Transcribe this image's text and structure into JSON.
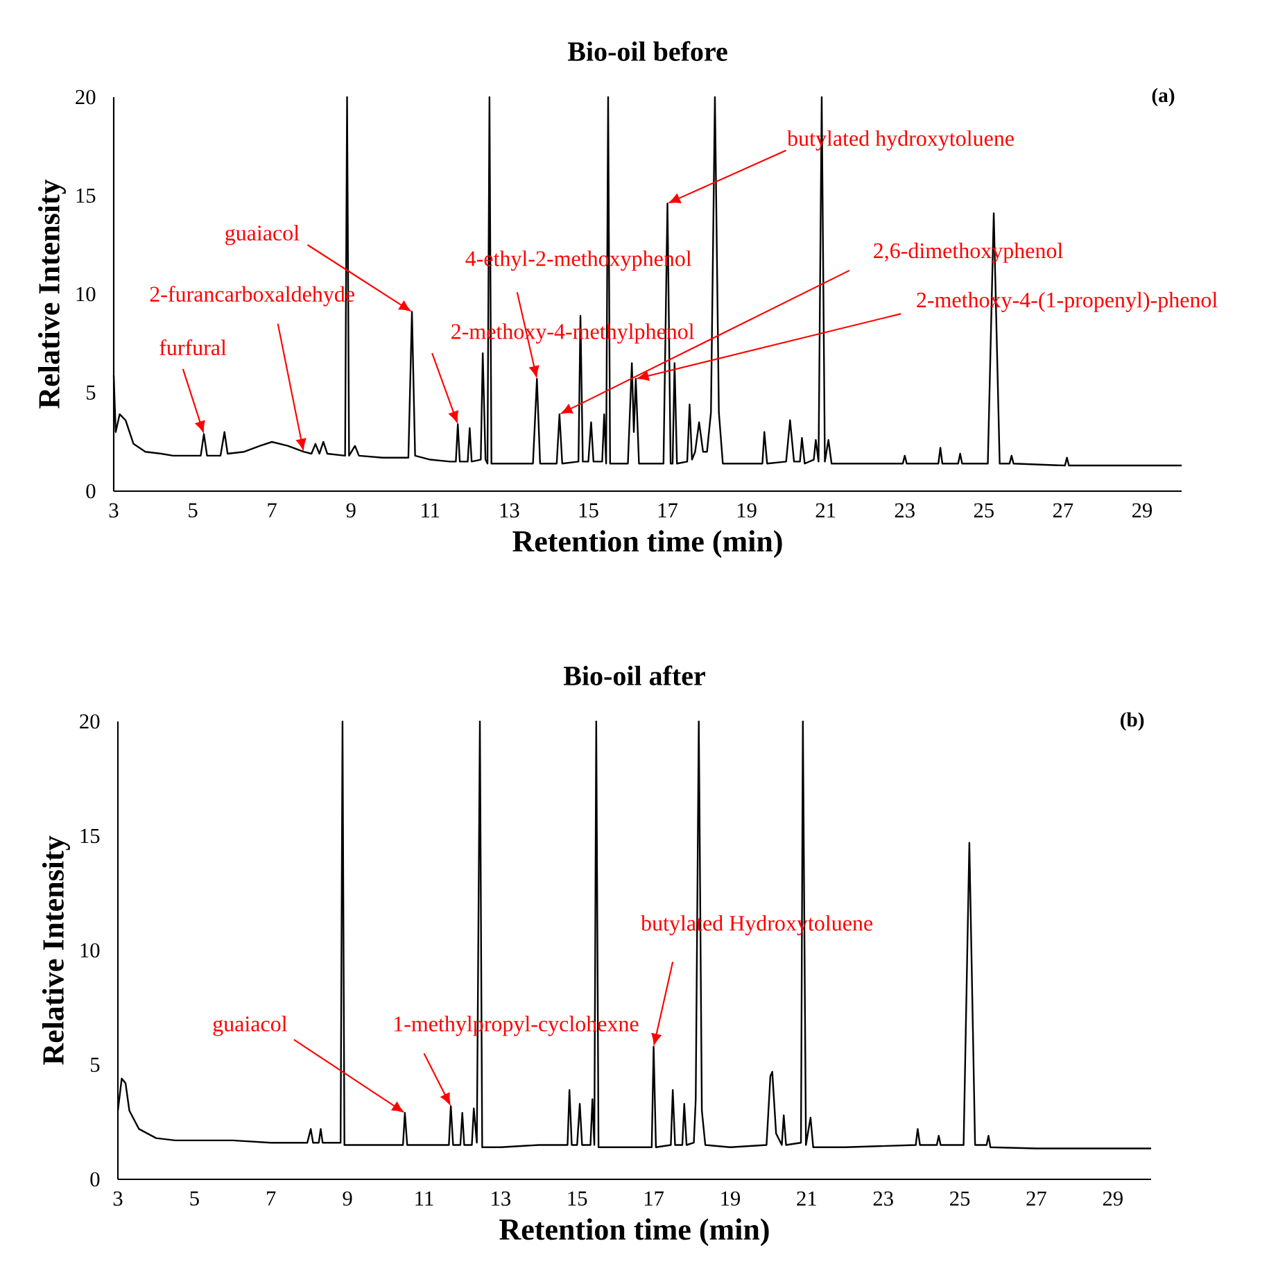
{
  "chart_data": [
    {
      "type": "line",
      "title": "Bio-oil before",
      "xlabel": "Retention time (min)",
      "ylabel": "Relative Intensity",
      "color": "#000000",
      "xlim": [
        3,
        30
      ],
      "xticks": [
        3,
        5,
        7,
        9,
        11,
        13,
        15,
        17,
        19,
        21,
        23,
        25,
        27,
        29
      ],
      "ylim": [
        0,
        20
      ],
      "yticks": [
        0,
        5,
        10,
        15,
        20
      ],
      "x": [
        3.0,
        3.05,
        3.15,
        3.3,
        3.5,
        3.8,
        4.2,
        4.5,
        5.0,
        5.2,
        5.28,
        5.36,
        5.7,
        5.8,
        5.88,
        6.3,
        6.7,
        7.0,
        7.4,
        7.8,
        8.0,
        8.1,
        8.2,
        8.3,
        8.4,
        8.85,
        8.9,
        8.95,
        9.1,
        9.2,
        9.8,
        10.3,
        10.45,
        10.54,
        10.62,
        11.0,
        11.5,
        11.65,
        11.7,
        11.75,
        11.95,
        12.0,
        12.05,
        12.28,
        12.33,
        12.4,
        12.45,
        12.5,
        12.55,
        13.0,
        13.6,
        13.7,
        13.78,
        14.2,
        14.27,
        14.34,
        14.75,
        14.8,
        14.86,
        15.0,
        15.07,
        15.13,
        15.35,
        15.4,
        15.45,
        15.5,
        15.55,
        16.0,
        16.1,
        16.15,
        16.2,
        16.28,
        16.9,
        17.0,
        17.08,
        17.13,
        17.18,
        17.24,
        17.5,
        17.56,
        17.62,
        17.7,
        17.8,
        17.9,
        18.0,
        18.1,
        18.2,
        18.3,
        18.4,
        19.0,
        19.4,
        19.45,
        19.52,
        20.0,
        20.1,
        20.2,
        20.35,
        20.4,
        20.47,
        20.7,
        20.75,
        20.82,
        20.9,
        20.98,
        21.07,
        21.15,
        22.0,
        22.95,
        23.0,
        23.05,
        23.85,
        23.9,
        23.95,
        24.35,
        24.4,
        24.45,
        25.1,
        25.25,
        25.4,
        25.65,
        25.7,
        25.75,
        27.05,
        27.1,
        27.15,
        28.5,
        30.0
      ],
      "values": [
        5.9,
        3.0,
        3.9,
        3.6,
        2.4,
        2.0,
        1.9,
        1.8,
        1.8,
        1.8,
        2.9,
        1.8,
        1.8,
        3.0,
        1.9,
        2.0,
        2.3,
        2.5,
        2.3,
        2.0,
        1.9,
        2.4,
        1.9,
        2.5,
        1.9,
        1.8,
        20,
        1.8,
        2.3,
        1.8,
        1.7,
        1.7,
        1.7,
        9.1,
        1.8,
        1.6,
        1.5,
        1.5,
        3.4,
        1.5,
        1.5,
        3.2,
        1.5,
        1.6,
        7.0,
        1.6,
        1.4,
        20,
        1.4,
        1.4,
        1.4,
        5.7,
        1.4,
        1.4,
        3.9,
        1.4,
        1.5,
        8.9,
        1.5,
        1.5,
        3.5,
        1.5,
        1.5,
        3.9,
        1.4,
        20,
        1.4,
        1.4,
        6.5,
        3.0,
        5.7,
        1.4,
        1.4,
        14.6,
        1.4,
        1.4,
        6.5,
        1.4,
        1.5,
        4.4,
        1.6,
        2.0,
        3.5,
        2.0,
        2.0,
        4.0,
        20,
        4.0,
        1.4,
        1.4,
        1.4,
        3.0,
        1.4,
        1.5,
        3.6,
        1.5,
        1.5,
        2.7,
        1.4,
        1.6,
        2.6,
        1.5,
        20,
        1.5,
        2.6,
        1.4,
        1.4,
        1.4,
        1.8,
        1.4,
        1.4,
        2.2,
        1.4,
        1.4,
        1.9,
        1.4,
        1.4,
        14.1,
        1.4,
        1.4,
        1.8,
        1.4,
        1.3,
        1.7,
        1.3,
        1.3,
        1.3
      ],
      "annotations": [
        "(a)",
        {
          "text": "furfural",
          "x": 5.28,
          "y": 2.9
        },
        {
          "text": "2-furancarboxaldehyde",
          "x": 7.8,
          "y": 2.0
        },
        {
          "text": "guaiacol",
          "x": 10.54,
          "y": 9.1
        },
        {
          "text": "2-methoxy-4-methylphenol",
          "x": 11.7,
          "y": 3.4
        },
        {
          "text": "4-ethyl-2-methoxyphenol",
          "x": 13.7,
          "y": 5.7
        },
        {
          "text": "2,6-dimethoxyphenol",
          "x": 14.27,
          "y": 3.9
        },
        {
          "text": "2-methoxy-4-(1-propenyl)-phenol",
          "x": 16.2,
          "y": 5.7
        },
        {
          "text": "butylated hydroxytoluene",
          "x": 17.0,
          "y": 14.6
        }
      ]
    },
    {
      "type": "line",
      "title": "Bio-oil after",
      "xlabel": "Retention time (min)",
      "ylabel": "Relative Intensity",
      "color": "#000000",
      "xlim": [
        3,
        30
      ],
      "xticks": [
        3,
        5,
        7,
        9,
        11,
        13,
        15,
        17,
        19,
        21,
        23,
        25,
        27,
        29
      ],
      "ylim": [
        0,
        20
      ],
      "yticks": [
        0,
        5,
        10,
        15,
        20
      ],
      "x": [
        3.0,
        3.1,
        3.2,
        3.3,
        3.55,
        4.0,
        4.5,
        5.0,
        6.0,
        7.0,
        7.95,
        8.04,
        8.1,
        8.25,
        8.3,
        8.35,
        8.82,
        8.87,
        8.92,
        9.5,
        10.45,
        10.5,
        10.56,
        11.0,
        11.65,
        11.7,
        11.76,
        11.95,
        12.0,
        12.05,
        12.25,
        12.3,
        12.38,
        12.46,
        12.52,
        13.0,
        14.0,
        14.75,
        14.8,
        14.86,
        15.0,
        15.07,
        15.13,
        15.35,
        15.4,
        15.45,
        15.5,
        15.56,
        16.0,
        16.95,
        17.0,
        17.06,
        17.45,
        17.5,
        17.56,
        17.75,
        17.8,
        17.86,
        18.05,
        18.1,
        18.18,
        18.26,
        18.35,
        19.0,
        19.95,
        20.05,
        20.1,
        20.2,
        20.35,
        20.4,
        20.46,
        20.85,
        20.9,
        20.98,
        21.1,
        21.17,
        22.0,
        23.85,
        23.9,
        23.96,
        24.4,
        24.45,
        24.5,
        25.1,
        25.25,
        25.4,
        25.7,
        25.75,
        25.8,
        27.0,
        30.0
      ],
      "values": [
        3.0,
        4.4,
        4.2,
        3.0,
        2.2,
        1.8,
        1.7,
        1.7,
        1.7,
        1.6,
        1.6,
        2.2,
        1.6,
        1.6,
        2.2,
        1.6,
        1.6,
        20,
        1.5,
        1.5,
        1.5,
        2.9,
        1.5,
        1.5,
        1.5,
        3.2,
        1.5,
        1.5,
        2.9,
        1.5,
        1.5,
        3.1,
        1.6,
        20,
        1.4,
        1.4,
        1.5,
        1.5,
        3.9,
        1.5,
        1.5,
        3.3,
        1.5,
        1.5,
        3.5,
        1.5,
        20,
        1.4,
        1.4,
        1.4,
        5.8,
        1.4,
        1.5,
        3.9,
        1.5,
        1.5,
        3.3,
        1.5,
        1.6,
        3.5,
        20,
        3.0,
        1.5,
        1.4,
        1.5,
        4.5,
        4.7,
        2.0,
        1.5,
        2.8,
        1.5,
        1.6,
        20,
        1.5,
        2.7,
        1.4,
        1.4,
        1.5,
        2.2,
        1.5,
        1.5,
        1.9,
        1.5,
        1.5,
        14.7,
        1.5,
        1.5,
        1.9,
        1.4,
        1.35,
        1.35
      ],
      "annotations": [
        "(b)",
        {
          "text": "guaiacol",
          "x": 10.5,
          "y": 2.9
        },
        {
          "text": "1-methylpropyl-cyclohexne",
          "x": 11.7,
          "y": 3.2
        },
        {
          "text": "butylated Hydroxytoluene",
          "x": 17.0,
          "y": 5.8
        }
      ]
    }
  ]
}
